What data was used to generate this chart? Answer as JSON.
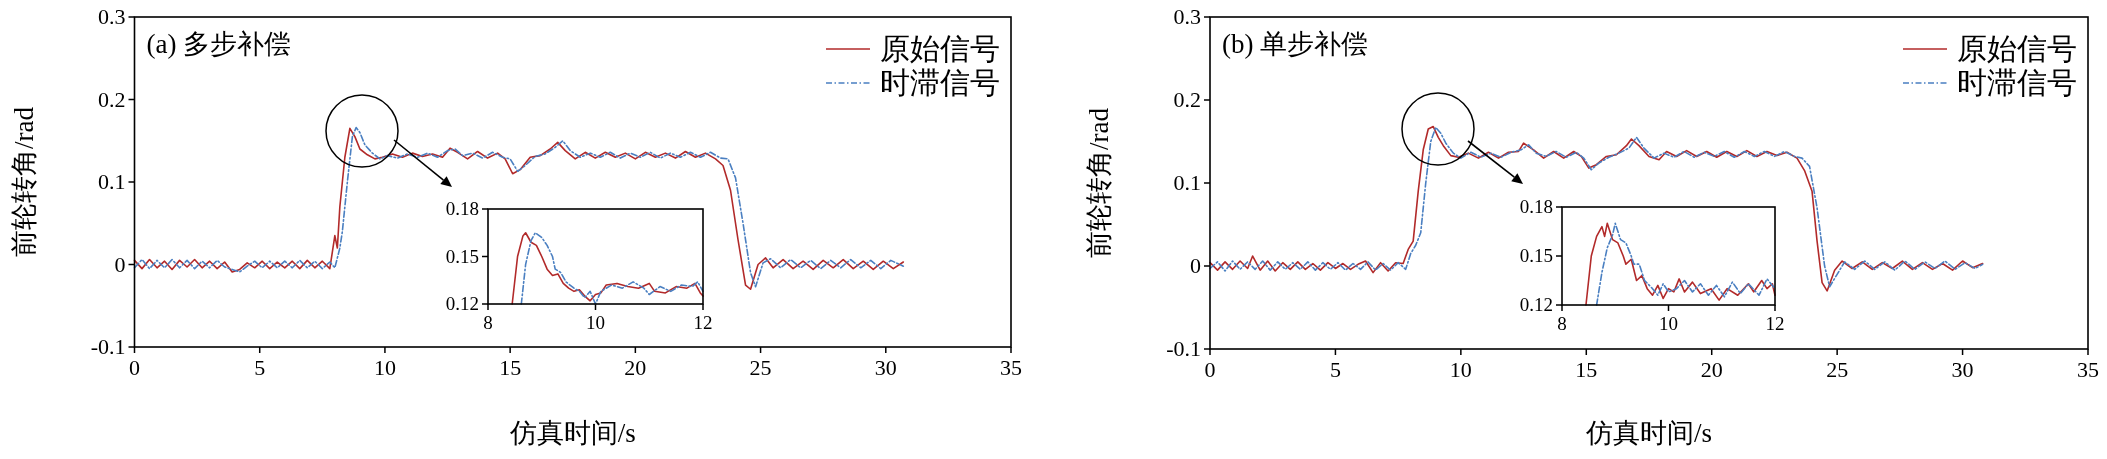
{
  "chart_data": [
    {
      "type": "line",
      "title": "(a) 多步补偿",
      "xlabel": "仿真时间/s",
      "ylabel": "前轮转角/rad",
      "xlim": [
        0,
        35
      ],
      "ylim": [
        -0.1,
        0.3
      ],
      "xticks": [
        0,
        5,
        10,
        15,
        20,
        25,
        30,
        35
      ],
      "yticks": [
        -0.1,
        0,
        0.1,
        0.2,
        0.3
      ],
      "legend": "top right",
      "marker": "none",
      "series": [
        {
          "name": "原始信号",
          "color": "#b22a2a",
          "line_style": "solid",
          "x": [
            0,
            0.3,
            0.6,
            0.9,
            1.2,
            1.5,
            1.8,
            2.1,
            2.4,
            2.7,
            3.0,
            3.3,
            3.6,
            3.9,
            4.2,
            4.5,
            4.8,
            5.1,
            5.4,
            5.7,
            6.0,
            6.3,
            6.6,
            6.9,
            7.2,
            7.5,
            7.8,
            8.0,
            8.1,
            8.2,
            8.4,
            8.6,
            8.8,
            9.0,
            9.3,
            9.6,
            9.9,
            10.3,
            10.7,
            11.1,
            11.5,
            11.9,
            12.3,
            12.6,
            12.9,
            13.3,
            13.7,
            14.1,
            14.5,
            14.8,
            15.1,
            15.4,
            15.8,
            16.2,
            16.6,
            16.9,
            17.2,
            17.6,
            18.0,
            18.4,
            18.8,
            19.2,
            19.6,
            20.0,
            20.4,
            20.8,
            21.2,
            21.6,
            22.0,
            22.4,
            22.8,
            23.2,
            23.5,
            23.8,
            24.1,
            24.4,
            24.6,
            24.9,
            25.2,
            25.5,
            25.9,
            26.3,
            26.7,
            27.1,
            27.5,
            27.9,
            28.3,
            28.7,
            29.1,
            29.5,
            29.9,
            30.3,
            30.7
          ],
          "values": [
            0.005,
            -0.005,
            0.006,
            -0.004,
            0.004,
            -0.006,
            0.005,
            -0.003,
            0.006,
            -0.004,
            0.004,
            -0.005,
            0.003,
            -0.009,
            -0.006,
            0.002,
            -0.004,
            0.004,
            -0.005,
            0.003,
            -0.004,
            0.004,
            -0.005,
            0.005,
            -0.004,
            0.004,
            -0.005,
            0.035,
            0.02,
            0.07,
            0.13,
            0.165,
            0.155,
            0.14,
            0.133,
            0.128,
            0.13,
            0.134,
            0.13,
            0.135,
            0.131,
            0.134,
            0.13,
            0.141,
            0.136,
            0.128,
            0.137,
            0.129,
            0.135,
            0.128,
            0.11,
            0.115,
            0.13,
            0.132,
            0.14,
            0.148,
            0.138,
            0.128,
            0.136,
            0.129,
            0.136,
            0.13,
            0.135,
            0.128,
            0.136,
            0.13,
            0.135,
            0.129,
            0.137,
            0.13,
            0.135,
            0.128,
            0.12,
            0.09,
            0.03,
            -0.025,
            -0.03,
            0,
            0.008,
            -0.004,
            0.006,
            -0.005,
            0.004,
            -0.006,
            0.005,
            -0.004,
            0.006,
            -0.005,
            0.004,
            -0.006,
            0.004,
            -0.005,
            0.003
          ]
        },
        {
          "name": "时滞信号",
          "color": "#4a7fc1",
          "line_style": "dashed",
          "x": [
            0,
            0.3,
            0.6,
            0.9,
            1.2,
            1.5,
            1.8,
            2.1,
            2.4,
            2.7,
            3.0,
            3.3,
            3.6,
            3.9,
            4.2,
            4.5,
            4.8,
            5.1,
            5.4,
            5.7,
            6.0,
            6.3,
            6.6,
            6.9,
            7.2,
            7.5,
            7.8,
            8.0,
            8.2,
            8.3,
            8.5,
            8.7,
            8.85,
            9.0,
            9.2,
            9.5,
            9.8,
            10.1,
            10.5,
            10.9,
            11.3,
            11.7,
            12.1,
            12.5,
            12.8,
            13.1,
            13.5,
            13.9,
            14.3,
            14.7,
            15.0,
            15.3,
            15.6,
            16.0,
            16.4,
            16.8,
            17.1,
            17.4,
            17.8,
            18.2,
            18.6,
            19.0,
            19.4,
            19.8,
            20.2,
            20.6,
            21.0,
            21.4,
            21.8,
            22.2,
            22.6,
            23.0,
            23.4,
            23.7,
            24.0,
            24.3,
            24.6,
            24.8,
            25.1,
            25.4,
            25.8,
            26.2,
            26.6,
            27.0,
            27.4,
            27.8,
            28.2,
            28.6,
            29.0,
            29.4,
            29.8,
            30.2,
            30.7
          ],
          "values": [
            -0.004,
            0.006,
            -0.005,
            0.005,
            -0.004,
            0.006,
            -0.004,
            0.005,
            -0.005,
            0.004,
            -0.004,
            0.005,
            -0.003,
            -0.006,
            -0.009,
            -0.002,
            0.004,
            -0.004,
            0.004,
            -0.004,
            0.004,
            -0.004,
            0.005,
            -0.004,
            0.004,
            -0.005,
            0.003,
            -0.004,
            0.02,
            0.04,
            0.1,
            0.155,
            0.166,
            0.16,
            0.145,
            0.135,
            0.128,
            0.132,
            0.129,
            0.134,
            0.13,
            0.135,
            0.13,
            0.138,
            0.14,
            0.132,
            0.135,
            0.129,
            0.136,
            0.13,
            0.128,
            0.113,
            0.12,
            0.131,
            0.134,
            0.142,
            0.15,
            0.138,
            0.13,
            0.135,
            0.13,
            0.136,
            0.129,
            0.135,
            0.13,
            0.136,
            0.129,
            0.135,
            0.13,
            0.136,
            0.13,
            0.136,
            0.129,
            0.128,
            0.105,
            0.05,
            -0.01,
            -0.027,
            0.002,
            0.007,
            -0.004,
            0.006,
            -0.004,
            0.005,
            -0.005,
            0.005,
            -0.004,
            0.006,
            -0.004,
            0.005,
            -0.005,
            0.005,
            -0.002
          ]
        }
      ]
    },
    {
      "type": "line",
      "xlim": [
        8,
        12
      ],
      "ylim": [
        0.12,
        0.18
      ],
      "xticks": [
        8,
        10,
        12
      ],
      "yticks": [
        0.12,
        0.15,
        0.18
      ],
      "marker": "none",
      "series": [
        {
          "color": "#b22a2a",
          "line_style": "solid",
          "x": [
            8.45,
            8.55,
            8.65,
            8.7,
            8.8,
            8.9,
            9.0,
            9.1,
            9.2,
            9.3,
            9.4,
            9.5,
            9.6,
            9.7,
            9.8,
            9.9,
            10.0,
            10.1,
            10.2,
            10.4,
            10.6,
            10.8,
            11.0,
            11.1,
            11.3,
            11.5,
            11.7,
            11.85,
            11.95,
            12.0
          ],
          "values": [
            0.12,
            0.15,
            0.163,
            0.165,
            0.159,
            0.157,
            0.15,
            0.142,
            0.138,
            0.139,
            0.133,
            0.13,
            0.128,
            0.129,
            0.125,
            0.122,
            0.126,
            0.127,
            0.132,
            0.133,
            0.131,
            0.13,
            0.133,
            0.128,
            0.127,
            0.131,
            0.13,
            0.133,
            0.127,
            0.125
          ]
        },
        {
          "color": "#4a7fc1",
          "line_style": "dashed",
          "x": [
            8.62,
            8.7,
            8.8,
            8.88,
            9.0,
            9.1,
            9.2,
            9.25,
            9.35,
            9.45,
            9.6,
            9.7,
            9.8,
            9.9,
            10.0,
            10.1,
            10.3,
            10.5,
            10.7,
            10.9,
            11.0,
            11.2,
            11.4,
            11.6,
            11.8,
            11.9,
            12.0
          ],
          "values": [
            0.12,
            0.145,
            0.16,
            0.165,
            0.162,
            0.157,
            0.15,
            0.142,
            0.14,
            0.134,
            0.13,
            0.128,
            0.124,
            0.128,
            0.12,
            0.128,
            0.132,
            0.13,
            0.134,
            0.13,
            0.126,
            0.131,
            0.128,
            0.132,
            0.131,
            0.134,
            0.128
          ]
        }
      ]
    },
    {
      "type": "line",
      "title": "(b) 单步补偿",
      "xlabel": "仿真时间/s",
      "ylabel": "前轮转角/rad",
      "xlim": [
        0,
        35
      ],
      "ylim": [
        -0.1,
        0.3
      ],
      "xticks": [
        0,
        5,
        10,
        15,
        20,
        25,
        30,
        35
      ],
      "yticks": [
        -0.1,
        0,
        0.1,
        0.2,
        0.3
      ],
      "legend": "top right",
      "marker": "none",
      "series": [
        {
          "name": "原始信号",
          "color": "#b22a2a",
          "line_style": "solid",
          "x": [
            0,
            0.3,
            0.6,
            0.9,
            1.2,
            1.5,
            1.7,
            2.0,
            2.3,
            2.6,
            2.9,
            3.2,
            3.5,
            3.8,
            4.1,
            4.4,
            4.7,
            5.0,
            5.3,
            5.6,
            5.9,
            6.2,
            6.5,
            6.8,
            7.1,
            7.4,
            7.7,
            7.9,
            8.1,
            8.3,
            8.5,
            8.7,
            8.9,
            9.1,
            9.3,
            9.6,
            9.9,
            10.3,
            10.7,
            11.1,
            11.5,
            11.9,
            12.3,
            12.5,
            12.9,
            13.3,
            13.7,
            14.1,
            14.5,
            14.8,
            15.1,
            15.4,
            15.8,
            16.2,
            16.6,
            16.8,
            17.1,
            17.5,
            17.9,
            18.2,
            18.6,
            19.0,
            19.4,
            19.8,
            20.2,
            20.6,
            21.0,
            21.4,
            21.8,
            22.2,
            22.6,
            23.0,
            23.4,
            23.7,
            24.0,
            24.2,
            24.4,
            24.6,
            24.9,
            25.2,
            25.6,
            26.0,
            26.4,
            26.8,
            27.2,
            27.6,
            28.0,
            28.4,
            28.8,
            29.2,
            29.6,
            30.0,
            30.4,
            30.8
          ],
          "values": [
            0.004,
            -0.005,
            0.005,
            -0.004,
            0.006,
            -0.003,
            0.012,
            -0.005,
            0.006,
            -0.006,
            0.004,
            -0.004,
            0.005,
            -0.004,
            0.003,
            -0.005,
            0.004,
            -0.003,
            0.003,
            -0.004,
            0.002,
            0.006,
            -0.008,
            0.004,
            -0.006,
            0.004,
            0.003,
            0.02,
            0.03,
            0.09,
            0.14,
            0.165,
            0.168,
            0.155,
            0.145,
            0.133,
            0.131,
            0.136,
            0.13,
            0.137,
            0.13,
            0.137,
            0.138,
            0.148,
            0.14,
            0.13,
            0.138,
            0.13,
            0.138,
            0.132,
            0.118,
            0.122,
            0.132,
            0.134,
            0.145,
            0.153,
            0.145,
            0.132,
            0.128,
            0.138,
            0.132,
            0.139,
            0.132,
            0.138,
            0.131,
            0.138,
            0.132,
            0.139,
            0.132,
            0.138,
            0.133,
            0.137,
            0.13,
            0.115,
            0.09,
            0.03,
            -0.02,
            -0.03,
            -0.005,
            0.006,
            -0.003,
            0.005,
            -0.004,
            0.004,
            -0.003,
            0.006,
            -0.004,
            0.004,
            -0.004,
            0.003,
            -0.005,
            0.006,
            -0.002,
            0.003
          ]
        },
        {
          "name": "时滞信号",
          "color": "#4a7fc1",
          "line_style": "dashed",
          "x": [
            0,
            0.3,
            0.6,
            0.9,
            1.2,
            1.5,
            1.8,
            2.1,
            2.4,
            2.7,
            3.0,
            3.3,
            3.6,
            3.9,
            4.2,
            4.5,
            4.8,
            5.1,
            5.4,
            5.7,
            6.0,
            6.3,
            6.6,
            6.9,
            7.2,
            7.5,
            7.8,
            8.0,
            8.2,
            8.4,
            8.6,
            8.8,
            9.0,
            9.2,
            9.4,
            9.7,
            10.0,
            10.4,
            10.8,
            11.2,
            11.6,
            12.0,
            12.4,
            12.7,
            13.0,
            13.4,
            13.8,
            14.2,
            14.6,
            14.9,
            15.2,
            15.5,
            15.9,
            16.3,
            16.7,
            17.0,
            17.3,
            17.7,
            18.1,
            18.5,
            18.9,
            19.3,
            19.7,
            20.1,
            20.5,
            20.9,
            21.3,
            21.7,
            22.1,
            22.5,
            22.9,
            23.3,
            23.6,
            23.9,
            24.2,
            24.5,
            24.7,
            25.0,
            25.3,
            25.7,
            26.1,
            26.5,
            26.9,
            27.3,
            27.7,
            28.1,
            28.5,
            28.9,
            29.3,
            29.7,
            30.1,
            30.5,
            30.8
          ],
          "values": [
            -0.003,
            0.005,
            -0.006,
            0.006,
            -0.004,
            0.005,
            -0.004,
            0.006,
            -0.005,
            0.005,
            -0.004,
            0.004,
            -0.004,
            0.005,
            -0.005,
            0.004,
            -0.004,
            0.004,
            -0.005,
            0.003,
            -0.004,
            0.005,
            -0.005,
            0.003,
            -0.005,
            0.004,
            -0.004,
            0.015,
            0.025,
            0.04,
            0.1,
            0.15,
            0.167,
            0.16,
            0.148,
            0.136,
            0.13,
            0.137,
            0.131,
            0.136,
            0.131,
            0.137,
            0.14,
            0.146,
            0.136,
            0.132,
            0.138,
            0.131,
            0.137,
            0.13,
            0.116,
            0.124,
            0.131,
            0.136,
            0.142,
            0.155,
            0.142,
            0.13,
            0.136,
            0.131,
            0.138,
            0.131,
            0.137,
            0.132,
            0.138,
            0.131,
            0.138,
            0.132,
            0.138,
            0.132,
            0.138,
            0.132,
            0.13,
            0.12,
            0.07,
            0,
            -0.025,
            -0.01,
            0.005,
            -0.004,
            0.006,
            -0.004,
            0.005,
            -0.005,
            0.006,
            -0.004,
            0.005,
            -0.003,
            0.006,
            -0.004,
            0.004,
            -0.003,
            0.002
          ]
        }
      ]
    },
    {
      "type": "line",
      "xlim": [
        8,
        12
      ],
      "ylim": [
        0.12,
        0.18
      ],
      "xticks": [
        8,
        10,
        12
      ],
      "yticks": [
        0.12,
        0.15,
        0.18
      ],
      "marker": "none",
      "series": [
        {
          "color": "#b22a2a",
          "line_style": "solid",
          "x": [
            8.45,
            8.55,
            8.65,
            8.75,
            8.8,
            8.85,
            8.95,
            9.05,
            9.15,
            9.2,
            9.3,
            9.4,
            9.5,
            9.6,
            9.7,
            9.8,
            9.9,
            10.0,
            10.1,
            10.2,
            10.3,
            10.45,
            10.6,
            10.8,
            10.95,
            11.1,
            11.3,
            11.5,
            11.6,
            11.75,
            11.85,
            11.95,
            12.0
          ],
          "values": [
            0.12,
            0.15,
            0.162,
            0.168,
            0.162,
            0.17,
            0.16,
            0.158,
            0.15,
            0.145,
            0.148,
            0.135,
            0.138,
            0.13,
            0.126,
            0.132,
            0.124,
            0.13,
            0.128,
            0.136,
            0.128,
            0.134,
            0.127,
            0.13,
            0.123,
            0.13,
            0.126,
            0.133,
            0.128,
            0.135,
            0.13,
            0.133,
            0.126
          ]
        },
        {
          "color": "#4a7fc1",
          "line_style": "dashed",
          "x": [
            8.65,
            8.75,
            8.85,
            8.95,
            9.0,
            9.1,
            9.2,
            9.3,
            9.35,
            9.45,
            9.55,
            9.7,
            9.8,
            9.9,
            10.0,
            10.15,
            10.3,
            10.45,
            10.6,
            10.75,
            10.9,
            11.05,
            11.2,
            11.35,
            11.5,
            11.7,
            11.85,
            12.0
          ],
          "values": [
            0.12,
            0.14,
            0.155,
            0.163,
            0.17,
            0.16,
            0.158,
            0.15,
            0.145,
            0.145,
            0.135,
            0.13,
            0.126,
            0.133,
            0.128,
            0.13,
            0.135,
            0.128,
            0.133,
            0.126,
            0.132,
            0.125,
            0.134,
            0.127,
            0.133,
            0.126,
            0.136,
            0.13
          ]
        }
      ]
    }
  ]
}
